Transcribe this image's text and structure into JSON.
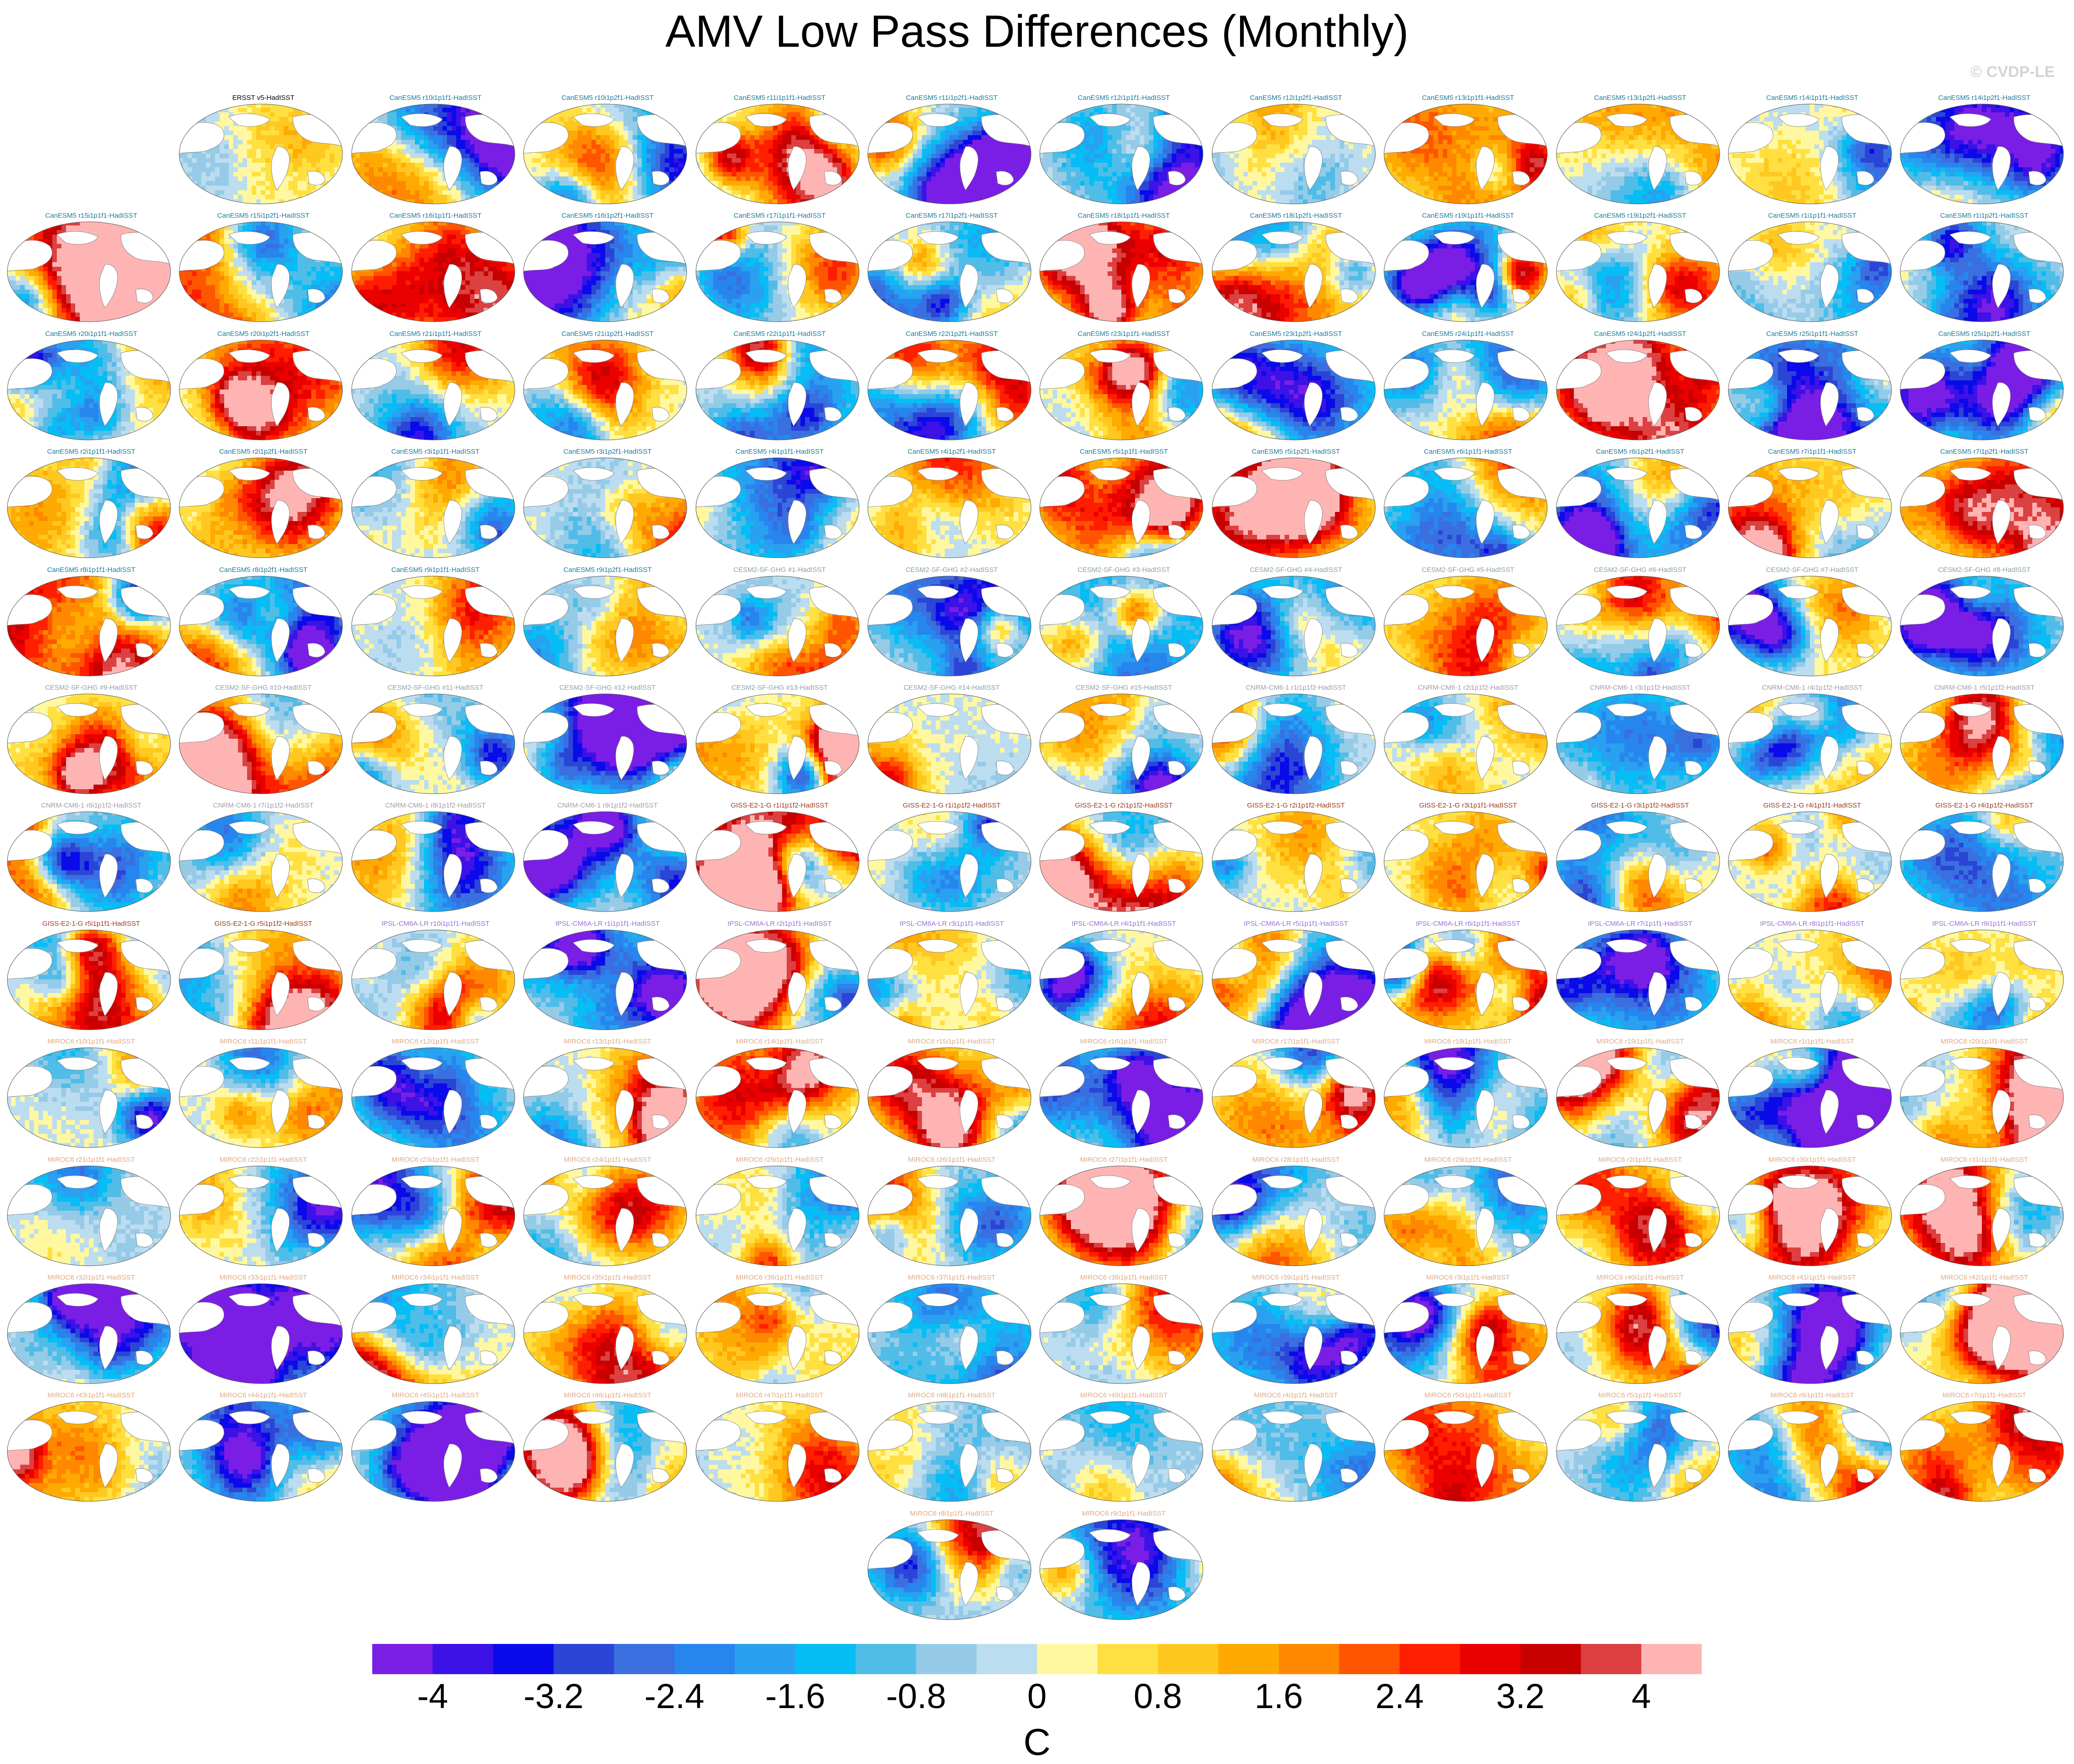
{
  "title": "AMV Low Pass Differences (Monthly)",
  "watermark": "© CVDP-LE",
  "chart_data": {
    "type": "heatmap",
    "layout_note_free": true,
    "colorbar": {
      "label": "C",
      "tick_labels": [
        "-4",
        "-3.2",
        "-2.4",
        "-1.6",
        "-0.8",
        "0",
        "0.8",
        "1.6",
        "2.4",
        "3.2",
        "4"
      ],
      "tick_values": [
        -4,
        -3.2,
        -2.4,
        -1.6,
        -0.8,
        0,
        0.8,
        1.6,
        2.4,
        3.2,
        4
      ],
      "bin_edges": [
        -4.4,
        -4,
        -3.6,
        -3.2,
        -2.8,
        -2.4,
        -2,
        -1.6,
        -1.2,
        -0.8,
        -0.4,
        0,
        0.4,
        0.8,
        1.2,
        1.6,
        2,
        2.4,
        2.8,
        3.2,
        3.6,
        4,
        4.4
      ],
      "colors": [
        "#7a1ee6",
        "#3c12e6",
        "#0a0aeb",
        "#2b45d6",
        "#3a6fe0",
        "#2686ee",
        "#2aa0f0",
        "#06bdf5",
        "#50bde8",
        "#96cbe8",
        "#bcddf0",
        "#fff8a0",
        "#ffe040",
        "#ffc820",
        "#ffaa00",
        "#ff8800",
        "#ff5500",
        "#ff1e00",
        "#eb0000",
        "#c80000",
        "#dc4040",
        "#ffb4b4"
      ]
    },
    "panels": [
      {
        "label": "ERSST v5-HadISST",
        "group": "obs"
      },
      {
        "label": "CanESM5 r10i1p1f1-HadISST",
        "group": "CanESM5"
      },
      {
        "label": "CanESM5 r10i1p2f1-HadISST",
        "group": "CanESM5"
      },
      {
        "label": "CanESM5 r11i1p1f1-HadISST",
        "group": "CanESM5"
      },
      {
        "label": "CanESM5 r11i1p2f1-HadISST",
        "group": "CanESM5"
      },
      {
        "label": "CanESM5 r12i1p1f1-HadISST",
        "group": "CanESM5"
      },
      {
        "label": "CanESM5 r12i1p2f1-HadISST",
        "group": "CanESM5"
      },
      {
        "label": "CanESM5 r13i1p1f1-HadISST",
        "group": "CanESM5"
      },
      {
        "label": "CanESM5 r13i1p2f1-HadISST",
        "group": "CanESM5"
      },
      {
        "label": "CanESM5 r14i1p1f1-HadISST",
        "group": "CanESM5"
      },
      {
        "label": "CanESM5 r14i1p2f1-HadISST",
        "group": "CanESM5"
      },
      {
        "label": "CanESM5 r15i1p1f1-HadISST",
        "group": "CanESM5"
      },
      {
        "label": "CanESM5 r15i1p2f1-HadISST",
        "group": "CanESM5"
      },
      {
        "label": "CanESM5 r16i1p1f1-HadISST",
        "group": "CanESM5"
      },
      {
        "label": "CanESM5 r16i1p2f1-HadISST",
        "group": "CanESM5"
      },
      {
        "label": "CanESM5 r17i1p1f1-HadISST",
        "group": "CanESM5"
      },
      {
        "label": "CanESM5 r17i1p2f1-HadISST",
        "group": "CanESM5"
      },
      {
        "label": "CanESM5 r18i1p1f1-HadISST",
        "group": "CanESM5"
      },
      {
        "label": "CanESM5 r18i1p2f1-HadISST",
        "group": "CanESM5"
      },
      {
        "label": "CanESM5 r19i1p1f1-HadISST",
        "group": "CanESM5"
      },
      {
        "label": "CanESM5 r19i1p2f1-HadISST",
        "group": "CanESM5"
      },
      {
        "label": "CanESM5 r1i1p1f1-HadISST",
        "group": "CanESM5"
      },
      {
        "label": "CanESM5 r1i1p2f1-HadISST",
        "group": "CanESM5"
      },
      {
        "label": "CanESM5 r20i1p1f1-HadISST",
        "group": "CanESM5"
      },
      {
        "label": "CanESM5 r20i1p2f1-HadISST",
        "group": "CanESM5"
      },
      {
        "label": "CanESM5 r21i1p1f1-HadISST",
        "group": "CanESM5"
      },
      {
        "label": "CanESM5 r21i1p2f1-HadISST",
        "group": "CanESM5"
      },
      {
        "label": "CanESM5 r22i1p1f1-HadISST",
        "group": "CanESM5"
      },
      {
        "label": "CanESM5 r22i1p2f1-HadISST",
        "group": "CanESM5"
      },
      {
        "label": "CanESM5 r23i1p1f1-HadISST",
        "group": "CanESM5"
      },
      {
        "label": "CanESM5 r23i1p2f1-HadISST",
        "group": "CanESM5"
      },
      {
        "label": "CanESM5 r24i1p1f1-HadISST",
        "group": "CanESM5"
      },
      {
        "label": "CanESM5 r24i1p2f1-HadISST",
        "group": "CanESM5"
      },
      {
        "label": "CanESM5 r25i1p1f1-HadISST",
        "group": "CanESM5"
      },
      {
        "label": "CanESM5 r25i1p2f1-HadISST",
        "group": "CanESM5"
      },
      {
        "label": "CanESM5 r2i1p1f1-HadISST",
        "group": "CanESM5"
      },
      {
        "label": "CanESM5 r2i1p2f1-HadISST",
        "group": "CanESM5"
      },
      {
        "label": "CanESM5 r3i1p1f1-HadISST",
        "group": "CanESM5"
      },
      {
        "label": "CanESM5 r3i1p2f1-HadISST",
        "group": "CanESM5"
      },
      {
        "label": "CanESM5 r4i1p1f1-HadISST",
        "group": "CanESM5"
      },
      {
        "label": "CanESM5 r4i1p2f1-HadISST",
        "group": "CanESM5"
      },
      {
        "label": "CanESM5 r5i1p1f1-HadISST",
        "group": "CanESM5"
      },
      {
        "label": "CanESM5 r5i1p2f1-HadISST",
        "group": "CanESM5"
      },
      {
        "label": "CanESM5 r6i1p1f1-HadISST",
        "group": "CanESM5"
      },
      {
        "label": "CanESM5 r6i1p2f1-HadISST",
        "group": "CanESM5"
      },
      {
        "label": "CanESM5 r7i1p1f1-HadISST",
        "group": "CanESM5"
      },
      {
        "label": "CanESM5 r7i1p2f1-HadISST",
        "group": "CanESM5"
      },
      {
        "label": "CanESM5 r8i1p1f1-HadISST",
        "group": "CanESM5"
      },
      {
        "label": "CanESM5 r8i1p2f1-HadISST",
        "group": "CanESM5"
      },
      {
        "label": "CanESM5 r9i1p1f1-HadISST",
        "group": "CanESM5"
      },
      {
        "label": "CanESM5 r9i1p2f1-HadISST",
        "group": "CanESM5"
      },
      {
        "label": "CESM2-SF-GHG #1-HadISST",
        "group": "CESM2"
      },
      {
        "label": "CESM2-SF-GHG #2-HadISST",
        "group": "CESM2"
      },
      {
        "label": "CESM2-SF-GHG #3-HadISST",
        "group": "CESM2"
      },
      {
        "label": "CESM2-SF-GHG #4-HadISST",
        "group": "CESM2"
      },
      {
        "label": "CESM2-SF-GHG #5-HadISST",
        "group": "CESM2"
      },
      {
        "label": "CESM2-SF-GHG #6-HadISST",
        "group": "CESM2"
      },
      {
        "label": "CESM2-SF-GHG #7-HadISST",
        "group": "CESM2"
      },
      {
        "label": "CESM2-SF-GHG #8-HadISST",
        "group": "CESM2"
      },
      {
        "label": "CESM2-SF-GHG #9-HadISST",
        "group": "CESM2"
      },
      {
        "label": "CESM2-SF-GHG #10-HadISST",
        "group": "CESM2"
      },
      {
        "label": "CESM2-SF-GHG #11-HadISST",
        "group": "CESM2"
      },
      {
        "label": "CESM2-SF-GHG #12-HadISST",
        "group": "CESM2"
      },
      {
        "label": "CESM2-SF-GHG #13-HadISST",
        "group": "CESM2"
      },
      {
        "label": "CESM2-SF-GHG #14-HadISST",
        "group": "CESM2"
      },
      {
        "label": "CESM2-SF-GHG #15-HadISST",
        "group": "CESM2"
      },
      {
        "label": "CNRM-CM6-1 r1i1p1f2-HadISST",
        "group": "CNRM"
      },
      {
        "label": "CNRM-CM6-1 r2i1p1f2-HadISST",
        "group": "CNRM"
      },
      {
        "label": "CNRM-CM6-1 r3i1p1f2-HadISST",
        "group": "CNRM"
      },
      {
        "label": "CNRM-CM6-1 r4i1p1f2-HadISST",
        "group": "CNRM"
      },
      {
        "label": "CNRM-CM6-1 r5i1p1f2-HadISST",
        "group": "CNRM"
      },
      {
        "label": "CNRM-CM6-1 r6i1p1f2-HadISST",
        "group": "CNRM"
      },
      {
        "label": "CNRM-CM6-1 r7i1p1f2-HadISST",
        "group": "CNRM"
      },
      {
        "label": "CNRM-CM6-1 r8i1p1f2-HadISST",
        "group": "CNRM"
      },
      {
        "label": "CNRM-CM6-1 r9i1p1f2-HadISST",
        "group": "CNRM"
      },
      {
        "label": "GISS-E2-1-G r1i1p1f2-HadISST",
        "group": "GISS"
      },
      {
        "label": "GISS-E2-1-G r1i1p1f2-HadISST",
        "group": "GISS"
      },
      {
        "label": "GISS-E2-1-G r2i1p1f2-HadISST",
        "group": "GISS"
      },
      {
        "label": "GISS-E2-1-G r2i1p1f2-HadISST",
        "group": "GISS"
      },
      {
        "label": "GISS-E2-1-G r3i1p1f1-HadISST",
        "group": "GISS"
      },
      {
        "label": "GISS-E2-1-G r3i1p1f2-HadISST",
        "group": "GISS"
      },
      {
        "label": "GISS-E2-1-G r4i1p1f1-HadISST",
        "group": "GISS"
      },
      {
        "label": "GISS-E2-1-G r4i1p1f2-HadISST",
        "group": "GISS"
      },
      {
        "label": "GISS-E2-1-G r5i1p1f1-HadISST",
        "group": "GISS"
      },
      {
        "label": "GISS-E2-1-G r5i1p1f2-HadISST",
        "group": "GISS"
      },
      {
        "label": "IPSL-CM6A-LR r10i1p1f1-HadISST",
        "group": "IPSL"
      },
      {
        "label": "IPSL-CM6A-LR r1i1p1f1-HadISST",
        "group": "IPSL"
      },
      {
        "label": "IPSL-CM6A-LR r2i1p1f1-HadISST",
        "group": "IPSL"
      },
      {
        "label": "IPSL-CM6A-LR r3i1p1f1-HadISST",
        "group": "IPSL"
      },
      {
        "label": "IPSL-CM6A-LR r4i1p1f1-HadISST",
        "group": "IPSL"
      },
      {
        "label": "IPSL-CM6A-LR r5i1p1f1-HadISST",
        "group": "IPSL"
      },
      {
        "label": "IPSL-CM6A-LR r6i1p1f1-HadISST",
        "group": "IPSL"
      },
      {
        "label": "IPSL-CM6A-LR r7i1p1f1-HadISST",
        "group": "IPSL"
      },
      {
        "label": "IPSL-CM6A-LR r8i1p1f1-HadISST",
        "group": "IPSL"
      },
      {
        "label": "IPSL-CM6A-LR r9i1p1f1-HadISST",
        "group": "IPSL"
      },
      {
        "label": "MIROC6 r10i1p1f1-HadISST",
        "group": "MIROC6"
      },
      {
        "label": "MIROC6 r11i1p1f1-HadISST",
        "group": "MIROC6"
      },
      {
        "label": "MIROC6 r12i1p1f1-HadISST",
        "group": "MIROC6"
      },
      {
        "label": "MIROC6 r13i1p1f1-HadISST",
        "group": "MIROC6"
      },
      {
        "label": "MIROC6 r14i1p1f1-HadISST",
        "group": "MIROC6"
      },
      {
        "label": "MIROC6 r15i1p1f1-HadISST",
        "group": "MIROC6"
      },
      {
        "label": "MIROC6 r16i1p1f1-HadISST",
        "group": "MIROC6"
      },
      {
        "label": "MIROC6 r17i1p1f1-HadISST",
        "group": "MIROC6"
      },
      {
        "label": "MIROC6 r18i1p1f1-HadISST",
        "group": "MIROC6"
      },
      {
        "label": "MIROC6 r19i1p1f1-HadISST",
        "group": "MIROC6"
      },
      {
        "label": "MIROC6 r1i1p1f1-HadISST",
        "group": "MIROC6"
      },
      {
        "label": "MIROC6 r20i1p1f1-HadISST",
        "group": "MIROC6"
      },
      {
        "label": "MIROC6 r21i1p1f1-HadISST",
        "group": "MIROC6"
      },
      {
        "label": "MIROC6 r22i1p1f1-HadISST",
        "group": "MIROC6"
      },
      {
        "label": "MIROC6 r23i1p1f1-HadISST",
        "group": "MIROC6"
      },
      {
        "label": "MIROC6 r24i1p1f1-HadISST",
        "group": "MIROC6"
      },
      {
        "label": "MIROC6 r25i1p1f1-HadISST",
        "group": "MIROC6"
      },
      {
        "label": "MIROC6 r26i1p1f1-HadISST",
        "group": "MIROC6"
      },
      {
        "label": "MIROC6 r27i1p1f1-HadISST",
        "group": "MIROC6"
      },
      {
        "label": "MIROC6 r28i1p1f1-HadISST",
        "group": "MIROC6"
      },
      {
        "label": "MIROC6 r29i1p1f1-HadISST",
        "group": "MIROC6"
      },
      {
        "label": "MIROC6 r2i1p1f1-HadISST",
        "group": "MIROC6"
      },
      {
        "label": "MIROC6 r30i1p1f1-HadISST",
        "group": "MIROC6"
      },
      {
        "label": "MIROC6 r31i1p1f1-HadISST",
        "group": "MIROC6"
      },
      {
        "label": "MIROC6 r32i1p1f1-HadISST",
        "group": "MIROC6"
      },
      {
        "label": "MIROC6 r33i1p1f1-HadISST",
        "group": "MIROC6"
      },
      {
        "label": "MIROC6 r34i1p1f1-HadISST",
        "group": "MIROC6"
      },
      {
        "label": "MIROC6 r35i1p1f1-HadISST",
        "group": "MIROC6"
      },
      {
        "label": "MIROC6 r36i1p1f1-HadISST",
        "group": "MIROC6"
      },
      {
        "label": "MIROC6 r37i1p1f1-HadISST",
        "group": "MIROC6"
      },
      {
        "label": "MIROC6 r38i1p1f1-HadISST",
        "group": "MIROC6"
      },
      {
        "label": "MIROC6 r39i1p1f1-HadISST",
        "group": "MIROC6"
      },
      {
        "label": "MIROC6 r3i1p1f1-HadISST",
        "group": "MIROC6"
      },
      {
        "label": "MIROC6 r40i1p1f1-HadISST",
        "group": "MIROC6"
      },
      {
        "label": "MIROC6 r41i1p1f1-HadISST",
        "group": "MIROC6"
      },
      {
        "label": "MIROC6 r42i1p1f1-HadISST",
        "group": "MIROC6"
      },
      {
        "label": "MIROC6 r43i1p1f1-HadISST",
        "group": "MIROC6"
      },
      {
        "label": "MIROC6 r44i1p1f1-HadISST",
        "group": "MIROC6"
      },
      {
        "label": "MIROC6 r45i1p1f1-HadISST",
        "group": "MIROC6"
      },
      {
        "label": "MIROC6 r46i1p1f1-HadISST",
        "group": "MIROC6"
      },
      {
        "label": "MIROC6 r47i1p1f1-HadISST",
        "group": "MIROC6"
      },
      {
        "label": "MIROC6 r48i1p1f1-HadISST",
        "group": "MIROC6"
      },
      {
        "label": "MIROC6 r49i1p1f1-HadISST",
        "group": "MIROC6"
      },
      {
        "label": "MIROC6 r4i1p1f1-HadISST",
        "group": "MIROC6"
      },
      {
        "label": "MIROC6 r50i1p1f1-HadISST",
        "group": "MIROC6"
      },
      {
        "label": "MIROC6 r5i1p1f1-HadISST",
        "group": "MIROC6"
      },
      {
        "label": "MIROC6 r6i1p1f1-HadISST",
        "group": "MIROC6"
      },
      {
        "label": "MIROC6 r7i1p1f1-HadISST",
        "group": "MIROC6"
      },
      {
        "label": "MIROC6 r8i1p1f1-HadISST",
        "group": "MIROC6"
      },
      {
        "label": "MIROC6 r9i1p1f1-HadISST",
        "group": "MIROC6"
      }
    ],
    "group_colors": {
      "obs": "#000000",
      "CanESM5": "#1a7a9a",
      "CESM2": "#8aa0a8",
      "CNRM": "#a09aa8",
      "GISS": "#9a3a1a",
      "IPSL": "#9a70d8",
      "MIROC6": "#e0a880"
    }
  }
}
